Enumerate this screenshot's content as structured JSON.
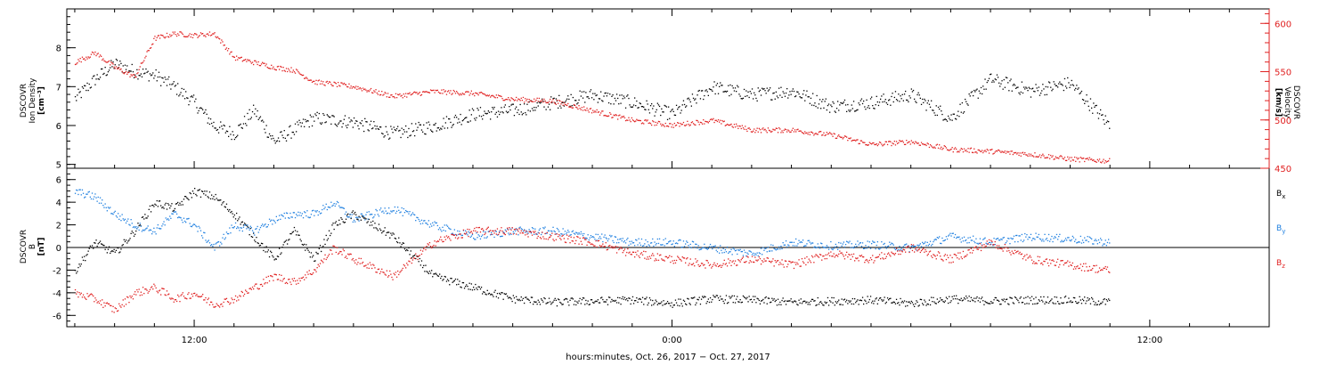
{
  "chart_data": [
    {
      "type": "scatter",
      "panel": "plasma",
      "ylabel_left": [
        "DSCOVR",
        "Ion Density",
        "[cm⁻³]"
      ],
      "ylabel_right": [
        "DSCOVR",
        "Velocity",
        "[km/s]"
      ],
      "ylim_left": [
        4.9,
        9.0
      ],
      "yticks_left": [
        "5",
        "6",
        "7",
        "8"
      ],
      "ylim_right": [
        450,
        615
      ],
      "yticks_right": [
        "450",
        "500",
        "550",
        "600"
      ],
      "series": [
        {
          "color": "#000000",
          "axis": "left",
          "x": [
            -3.0,
            -2.5,
            -2.0,
            -1.5,
            -1.0,
            -0.5,
            0.0,
            0.5,
            1.0,
            1.5,
            2.0,
            2.5,
            3.0,
            4.0,
            5.0,
            6.0,
            7.0,
            8.0,
            9.0,
            10.0,
            11.0,
            12.0,
            13.0,
            14.0,
            15.0,
            16.0,
            17.0,
            18.0,
            19.0,
            20.0,
            21.0,
            22.0,
            23.0
          ],
          "y": [
            6.7,
            7.2,
            7.6,
            7.4,
            7.3,
            7.0,
            6.6,
            6.0,
            5.8,
            6.4,
            5.6,
            5.9,
            6.2,
            6.1,
            5.8,
            6.0,
            6.3,
            6.4,
            6.6,
            6.8,
            6.6,
            6.3,
            7.0,
            6.8,
            6.9,
            6.5,
            6.6,
            6.8,
            6.2,
            7.2,
            6.9,
            7.1,
            6.0
          ]
        },
        {
          "color": "#e02020",
          "axis": "right",
          "x": [
            -3.0,
            -2.5,
            -2.0,
            -1.5,
            -1.0,
            -0.5,
            0.0,
            0.5,
            1.0,
            1.5,
            2.0,
            2.5,
            3.0,
            4.0,
            5.0,
            6.0,
            7.0,
            8.0,
            9.0,
            10.0,
            11.0,
            12.0,
            13.0,
            14.0,
            15.0,
            16.0,
            17.0,
            18.0,
            19.0,
            20.0,
            21.0,
            22.0,
            23.0
          ],
          "y": [
            560,
            570,
            555,
            545,
            585,
            590,
            588,
            590,
            565,
            560,
            555,
            552,
            540,
            535,
            525,
            530,
            528,
            522,
            520,
            510,
            500,
            495,
            500,
            490,
            490,
            485,
            475,
            478,
            470,
            468,
            465,
            460,
            458
          ]
        }
      ]
    },
    {
      "type": "scatter",
      "panel": "magnetic field",
      "ylabel_left": [
        "DSCOVR",
        "B",
        "[nT]"
      ],
      "ylim": [
        -7.0,
        7.0
      ],
      "yticks": [
        "-6",
        "-4",
        "-2",
        "0",
        "2",
        "4",
        "6"
      ],
      "zero_line": true,
      "legend_right": [
        {
          "text": "B",
          "sub": "x",
          "color": "#000000"
        },
        {
          "text": "B",
          "sub": "y",
          "color": "#2080e0"
        },
        {
          "text": "B",
          "sub": "z",
          "color": "#e02020"
        }
      ],
      "series": [
        {
          "name": "Bx",
          "color": "#000000",
          "x": [
            -3.0,
            -2.5,
            -2.0,
            -1.5,
            -1.0,
            -0.5,
            0.0,
            0.5,
            1.0,
            1.5,
            2.0,
            2.5,
            3.0,
            3.5,
            4.0,
            5.0,
            6.0,
            7.0,
            8.0,
            9.0,
            10.0,
            11.0,
            12.0,
            13.0,
            14.0,
            15.0,
            16.0,
            17.0,
            18.0,
            19.0,
            20.0,
            21.0,
            22.0,
            23.0
          ],
          "y": [
            -2.0,
            0.5,
            -0.5,
            1.5,
            4.0,
            3.5,
            5.0,
            4.5,
            3.0,
            1.0,
            -1.0,
            1.5,
            -1.0,
            2.0,
            3.0,
            1.0,
            -2.5,
            -3.5,
            -4.5,
            -4.8,
            -4.7,
            -4.6,
            -4.9,
            -4.5,
            -4.6,
            -4.8,
            -4.7,
            -4.6,
            -4.9,
            -4.5,
            -4.7,
            -4.6,
            -4.6,
            -4.8
          ]
        },
        {
          "name": "By",
          "color": "#2080e0",
          "x": [
            -3.0,
            -2.5,
            -2.0,
            -1.5,
            -1.0,
            -0.5,
            0.0,
            0.5,
            1.0,
            1.5,
            2.0,
            2.5,
            3.0,
            3.5,
            4.0,
            5.0,
            6.0,
            7.0,
            8.0,
            9.0,
            10.0,
            11.0,
            12.0,
            13.0,
            14.0,
            15.0,
            16.0,
            17.0,
            18.0,
            19.0,
            20.0,
            21.0,
            22.0,
            23.0
          ],
          "y": [
            5.0,
            4.5,
            3.0,
            2.0,
            1.5,
            3.0,
            2.0,
            0.0,
            2.0,
            1.5,
            2.5,
            3.0,
            3.0,
            4.0,
            2.5,
            3.5,
            2.0,
            1.0,
            1.5,
            1.5,
            1.0,
            0.5,
            0.5,
            0.0,
            -0.5,
            0.5,
            0.2,
            0.3,
            0.0,
            1.0,
            0.5,
            1.0,
            0.8,
            0.5
          ]
        },
        {
          "name": "Bz",
          "color": "#e02020",
          "x": [
            -3.0,
            -2.5,
            -2.0,
            -1.5,
            -1.0,
            -0.5,
            0.0,
            0.5,
            1.0,
            1.5,
            2.0,
            2.5,
            3.0,
            3.5,
            4.0,
            5.0,
            6.0,
            7.0,
            8.0,
            9.0,
            10.0,
            11.0,
            12.0,
            13.0,
            14.0,
            15.0,
            16.0,
            17.0,
            18.0,
            19.0,
            20.0,
            21.0,
            22.0,
            23.0
          ],
          "y": [
            -4.0,
            -4.5,
            -5.5,
            -4.0,
            -3.5,
            -4.5,
            -4.0,
            -5.0,
            -4.5,
            -3.5,
            -2.5,
            -3.0,
            -2.0,
            0.0,
            -1.0,
            -2.5,
            0.5,
            1.5,
            1.5,
            1.0,
            0.5,
            -0.5,
            -1.0,
            -1.5,
            -1.0,
            -1.5,
            -0.5,
            -1.0,
            0.0,
            -1.0,
            0.5,
            -1.0,
            -1.5,
            -2.0
          ]
        }
      ]
    }
  ],
  "xaxis": {
    "ticks": [
      "12:00",
      "0:00",
      "12:00"
    ],
    "tick_hours": [
      0,
      12,
      24
    ],
    "xlim_hours": [
      -3.2,
      27.0
    ],
    "label": "hours:minutes, Oct. 26, 2017 − Oct. 27, 2017"
  },
  "colors": {
    "bx": "#000000",
    "by": "#2080e0",
    "bz": "#e02020",
    "density": "#000000",
    "velocity": "#e02020"
  }
}
